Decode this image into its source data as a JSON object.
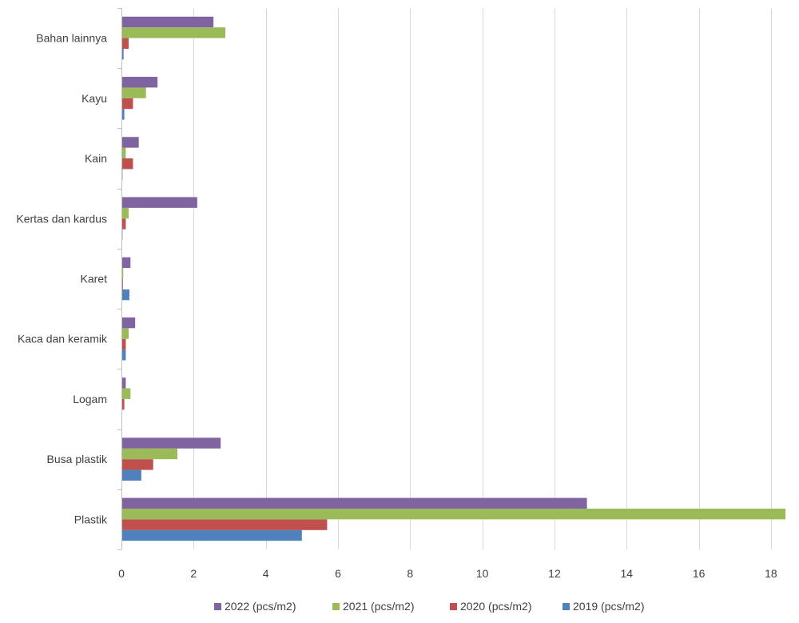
{
  "chart_data": {
    "type": "bar",
    "orientation": "horizontal",
    "categories": [
      "Plastik",
      "Busa plastik",
      "Logam",
      "Kaca dan keramik",
      "Karet",
      "Kertas dan kardus",
      "Kain",
      "Kayu",
      "Bahan lainnya"
    ],
    "series": [
      {
        "name": "2019 (pcs/m2)",
        "color": "#4F81BD",
        "values": [
          5.0,
          0.55,
          0.0,
          0.12,
          0.22,
          0.03,
          0.03,
          0.08,
          0.06
        ]
      },
      {
        "name": "2020 (pcs/m2)",
        "color": "#C0504D",
        "values": [
          5.7,
          0.88,
          0.08,
          0.12,
          0.04,
          0.12,
          0.32,
          0.32,
          0.2
        ]
      },
      {
        "name": "2021 (pcs/m2)",
        "color": "#9BBB59",
        "values": [
          18.4,
          1.55,
          0.25,
          0.2,
          0.05,
          0.2,
          0.12,
          0.68,
          2.88
        ]
      },
      {
        "name": "2022 (pcs/m2)",
        "color": "#8064A2",
        "values": [
          12.9,
          2.75,
          0.12,
          0.38,
          0.25,
          2.1,
          0.48,
          1.0,
          2.55
        ]
      }
    ],
    "xlim": [
      0,
      18.4
    ],
    "xticks": [
      0,
      2,
      4,
      6,
      8,
      10,
      12,
      14,
      16,
      18
    ],
    "grid": "vertical",
    "legend": "bottom",
    "legend_order": [
      "2022 (pcs/m2)",
      "2021 (pcs/m2)",
      "2020 (pcs/m2)",
      "2019 (pcs/m2)"
    ],
    "title": "",
    "xlabel": "",
    "ylabel": ""
  }
}
